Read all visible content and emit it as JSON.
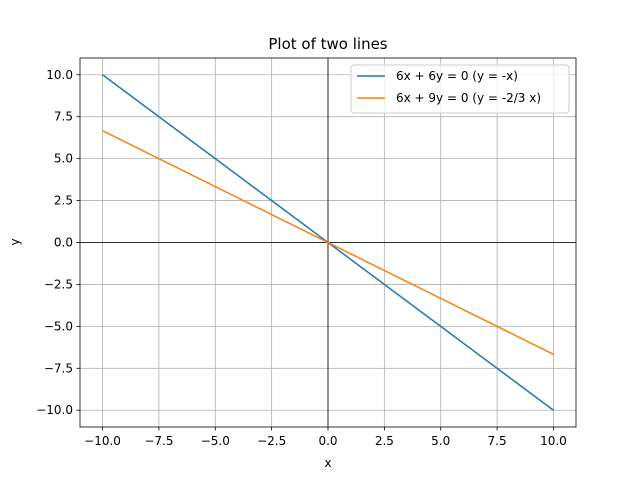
{
  "chart_data": {
    "type": "line",
    "title": "Plot of two lines",
    "xlabel": "x",
    "ylabel": "y",
    "xlim": [
      -11,
      11
    ],
    "ylim": [
      -11,
      11
    ],
    "xticks": [
      -10,
      -7.5,
      -5,
      -2.5,
      0,
      2.5,
      5,
      7.5,
      10
    ],
    "yticks": [
      -10,
      -7.5,
      -5,
      -2.5,
      0,
      2.5,
      5,
      7.5,
      10
    ],
    "xtick_labels": [
      "−10.0",
      "−7.5",
      "−5.0",
      "−2.5",
      "0.0",
      "2.5",
      "5.0",
      "7.5",
      "10.0"
    ],
    "ytick_labels": [
      "−10.0",
      "−7.5",
      "−5.0",
      "−2.5",
      "0.0",
      "2.5",
      "5.0",
      "7.5",
      "10.0"
    ],
    "grid": true,
    "reference_lines": {
      "x": 0,
      "y": 0,
      "color": "#000000"
    },
    "legend_position": "upper right",
    "series": [
      {
        "name": "6x + 6y = 0 (y = -x)",
        "color": "#1f77b4",
        "x": [
          -10,
          10
        ],
        "y": [
          10,
          -10
        ]
      },
      {
        "name": "6x + 9y = 0 (y = -2/3 x)",
        "color": "#ff7f0e",
        "x": [
          -10,
          10
        ],
        "y": [
          6.667,
          -6.667
        ]
      }
    ]
  }
}
